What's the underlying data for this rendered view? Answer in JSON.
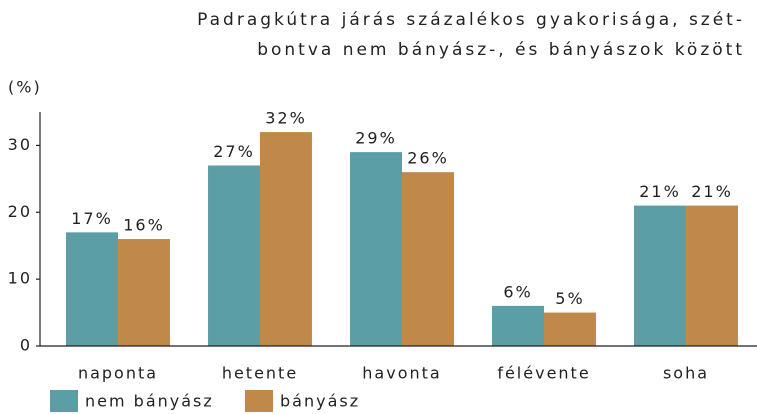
{
  "chart_data": {
    "type": "bar",
    "title": [
      "Padragkútra járás százalékos gyakorisága, szét-",
      "bontva nem bányász-, és bányászok között"
    ],
    "y_label": "(%)",
    "categories": [
      "naponta",
      "hetente",
      "havonta",
      "félévente",
      "soha"
    ],
    "series": [
      {
        "name": "nem bányász",
        "color": "#5b9ea6",
        "values": [
          17,
          27,
          29,
          6,
          21
        ],
        "value_labels": [
          "17%",
          "27%",
          "29%",
          "6%",
          "21%"
        ]
      },
      {
        "name": "bányász",
        "color": "#c0894a",
        "values": [
          16,
          32,
          26,
          5,
          21
        ],
        "value_labels": [
          "16%",
          "32%",
          "26%",
          "5%",
          "21%"
        ]
      }
    ],
    "ylim": [
      0,
      35
    ],
    "yticks": [
      0,
      10,
      20,
      30
    ],
    "grid": false,
    "legend": "bottom"
  }
}
